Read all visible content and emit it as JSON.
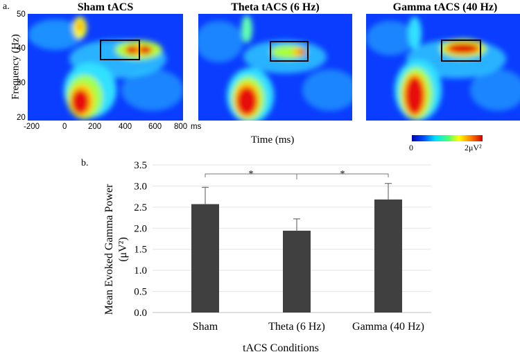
{
  "panel_a": {
    "label": "a.",
    "maps": [
      {
        "title": "Sham tACS"
      },
      {
        "title": "Theta tACS (6 Hz)"
      },
      {
        "title": "Gamma tACS (40 Hz)"
      }
    ],
    "y_title": "Frequency (Hz)",
    "y_ticks": [
      "50",
      "40",
      "30",
      "20"
    ],
    "x_ticks": [
      "-200",
      "0",
      "200",
      "400",
      "600",
      "800"
    ],
    "x_unit": "ms",
    "x_title": "Time (ms)",
    "colorbar": {
      "min_label": "0",
      "max_label": "2μV²"
    }
  },
  "panel_b": {
    "label": "b.",
    "sig_marks": [
      "*",
      "*"
    ]
  },
  "chart_data": {
    "type": "bar",
    "categories": [
      "Sham",
      "Theta (6 Hz)",
      "Gamma (40 Hz)"
    ],
    "values": [
      2.57,
      1.94,
      2.68
    ],
    "errors": [
      0.4,
      0.28,
      0.38
    ],
    "ylim": [
      0.0,
      3.5
    ],
    "yticks": [
      "0.0",
      "0.5",
      "1.0",
      "1.5",
      "2.0",
      "2.5",
      "3.0",
      "3.5"
    ],
    "title": "",
    "xlabel": "tACS Conditions",
    "ylabel": "Mean Evoked Gamma Power",
    "ylabel2": "(μV²)",
    "bar_color": "#404040",
    "grid": true
  }
}
